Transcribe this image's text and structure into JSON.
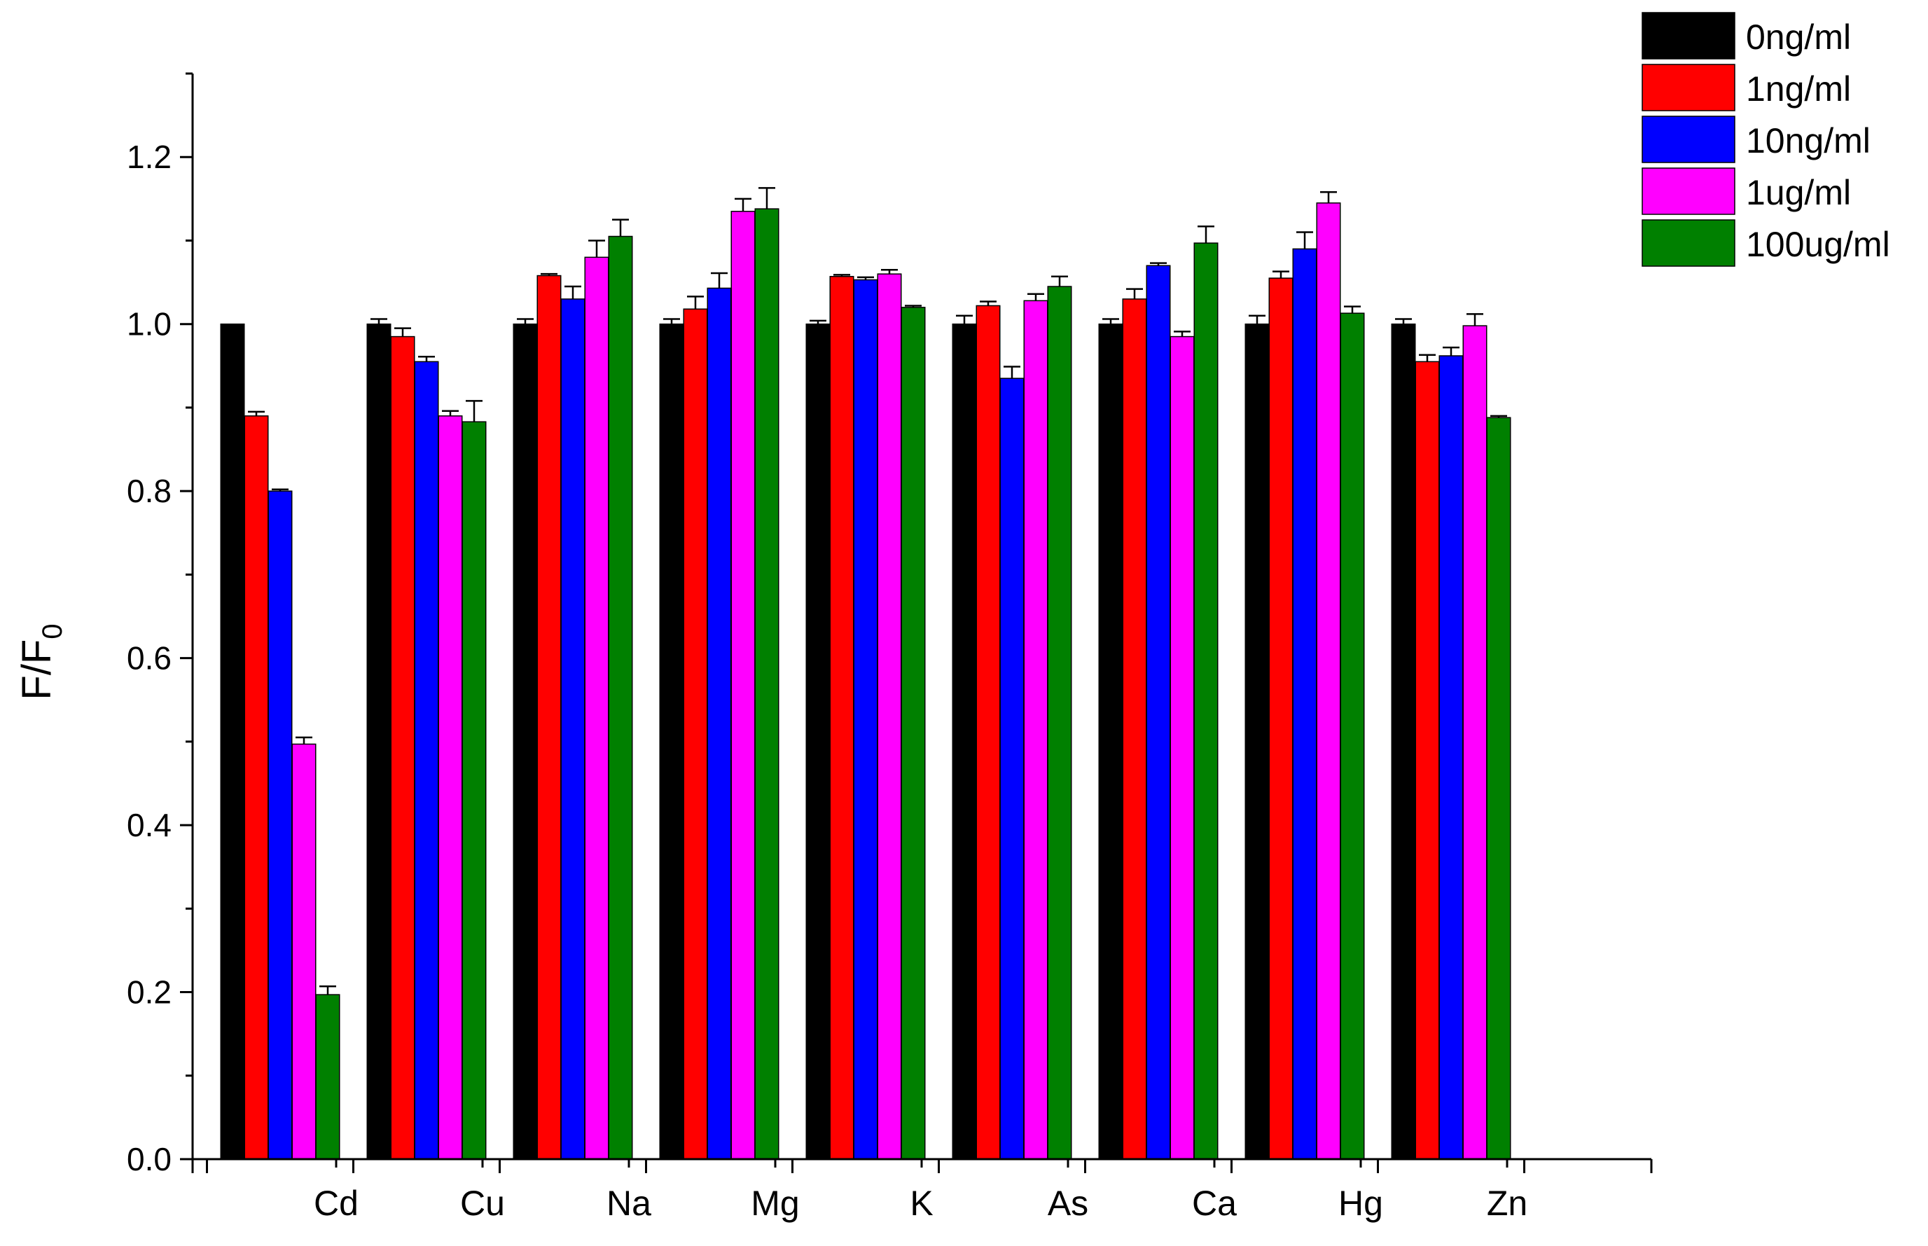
{
  "chart_data": {
    "type": "bar",
    "title": "",
    "xlabel": "",
    "ylabel": {
      "main": "F/F",
      "sub": "0"
    },
    "ylim": [
      0,
      1.3
    ],
    "yticks": [
      "0.0",
      "0.2",
      "0.4",
      "0.6",
      "0.8",
      "1.0",
      "1.2"
    ],
    "grid": false,
    "legend_position": "top-right",
    "error_bars": true,
    "categories": [
      "Cd",
      "Cu",
      "Na",
      "Mg",
      "K",
      "As",
      "Ca",
      "Hg",
      "Zn"
    ],
    "series": [
      {
        "name": "0ng/ml",
        "color": "#000000",
        "values": [
          1.0,
          1.0,
          1.0,
          1.0,
          1.0,
          1.0,
          1.0,
          1.0,
          1.0
        ],
        "errors": [
          0.0,
          0.006,
          0.006,
          0.006,
          0.004,
          0.01,
          0.006,
          0.01,
          0.006
        ]
      },
      {
        "name": "1ng/ml",
        "color": "#ff0000",
        "values": [
          0.89,
          0.985,
          1.058,
          1.018,
          1.057,
          1.022,
          1.03,
          1.055,
          0.955
        ],
        "errors": [
          0.005,
          0.01,
          0.002,
          0.015,
          0.002,
          0.005,
          0.012,
          0.008,
          0.008
        ]
      },
      {
        "name": "10ng/ml",
        "color": "#0000ff",
        "values": [
          0.8,
          0.955,
          1.03,
          1.043,
          1.053,
          0.935,
          1.07,
          1.09,
          0.962
        ],
        "errors": [
          0.002,
          0.006,
          0.015,
          0.018,
          0.003,
          0.014,
          0.003,
          0.02,
          0.01
        ]
      },
      {
        "name": "1ug/ml",
        "color": "#ff00ff",
        "values": [
          0.497,
          0.89,
          1.08,
          1.135,
          1.06,
          1.028,
          0.985,
          1.145,
          0.998
        ],
        "errors": [
          0.008,
          0.006,
          0.02,
          0.015,
          0.005,
          0.008,
          0.006,
          0.013,
          0.014
        ]
      },
      {
        "name": "100ug/ml",
        "color": "#008000",
        "values": [
          0.197,
          0.883,
          1.105,
          1.138,
          1.02,
          1.045,
          1.097,
          1.013,
          0.888
        ],
        "errors": [
          0.01,
          0.025,
          0.02,
          0.025,
          0.002,
          0.012,
          0.02,
          0.008,
          0.002
        ]
      }
    ]
  }
}
